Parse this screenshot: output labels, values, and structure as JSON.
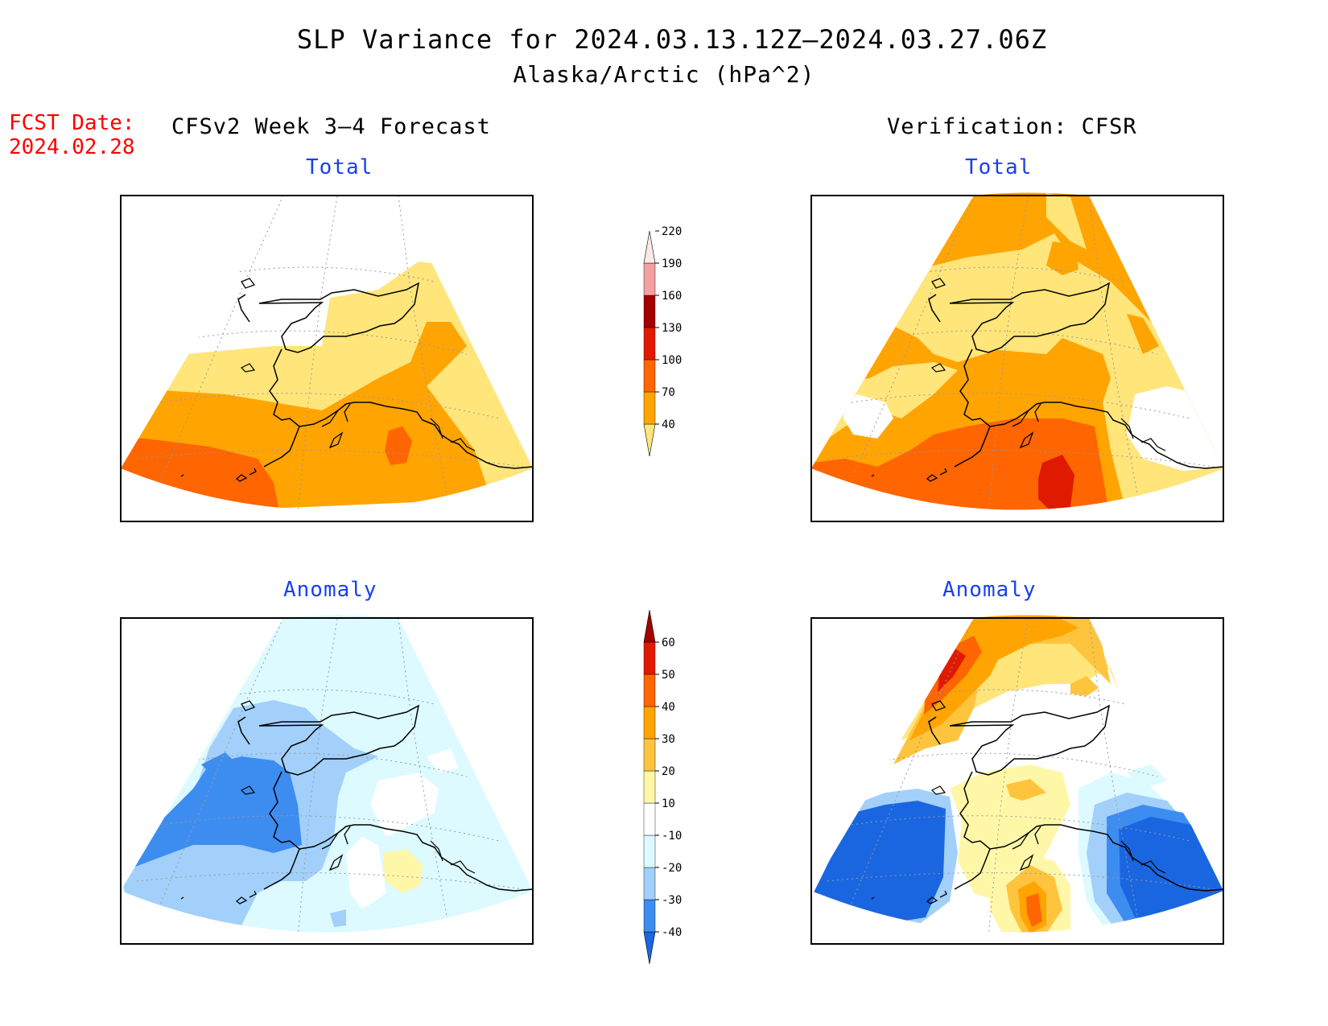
{
  "title": {
    "line1": "SLP Variance for 2024.03.13.12Z—2024.03.27.06Z",
    "line2": "Alaska/Arctic (hPa^2)"
  },
  "forecast_date": {
    "label": "FCST Date:",
    "value": "2024.02.28"
  },
  "columns": {
    "left": "CFSv2 Week 3—4 Forecast",
    "right": "Verification: CFSR"
  },
  "panels": {
    "forecast_total": "Total",
    "verification_total": "Total",
    "forecast_anomaly": "Anomaly",
    "verification_anomaly": "Anomaly"
  },
  "total_colorbar": {
    "levels": [
      "40",
      "70",
      "100",
      "130",
      "160",
      "190",
      "220"
    ],
    "colors": [
      "#ffe57a",
      "#ffa400",
      "#ff6500",
      "#e01a00",
      "#a30000",
      "#f4a0a0",
      "#fde8e8"
    ]
  },
  "anomaly_colorbar": {
    "levels": [
      "-40",
      "-30",
      "-20",
      "-10",
      "10",
      "20",
      "30",
      "40",
      "50",
      "60"
    ],
    "colors": [
      "#1a66e0",
      "#3d8cf0",
      "#a2d0fa",
      "#dcfaff",
      "#ffffff",
      "#fff7a8",
      "#ffc43e",
      "#ffa400",
      "#ff6500",
      "#e01a00",
      "#a30000"
    ]
  },
  "colors": {
    "title": "#000000",
    "forecast_date": "#ff0000",
    "panel_title": "#1a3ff0"
  }
}
